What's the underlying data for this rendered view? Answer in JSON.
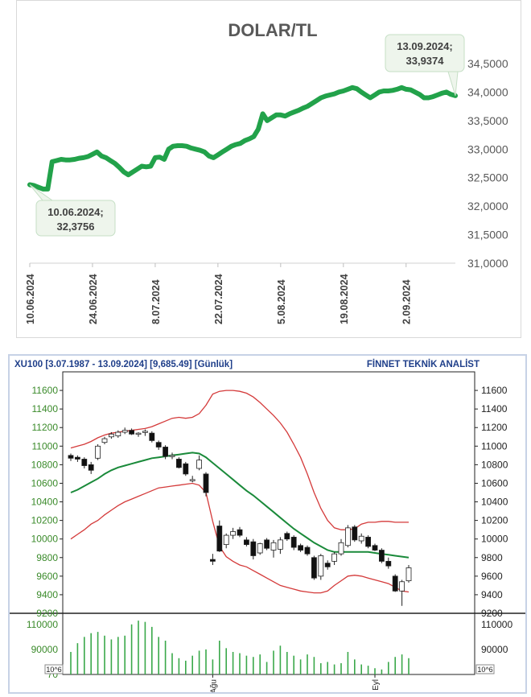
{
  "chart_data": [
    {
      "type": "line",
      "title": "DOLAR/TL",
      "x_tick_labels": [
        "10.06.2024",
        "24.06.2024",
        "8.07.2024",
        "22.07.2024",
        "5.08.2024",
        "19.08.2024",
        "2.09.2024"
      ],
      "y_tick_labels": [
        "31,0000",
        "31,5000",
        "32,0000",
        "32,5000",
        "33,0000",
        "33,5000",
        "34,0000",
        "34,5000"
      ],
      "ylim": [
        31.0,
        34.5
      ],
      "grid": false,
      "series_color": "#22a24a",
      "annotations": [
        {
          "date_line": "10.06.2024;",
          "value_line": "32,3756",
          "x": 0,
          "y": 32.3756
        },
        {
          "date_line": "13.09.2024;",
          "value_line": "33,9374",
          "x": 95,
          "y": 33.9374
        }
      ],
      "points": [
        [
          0,
          32.3756
        ],
        [
          1,
          32.36
        ],
        [
          2,
          32.33
        ],
        [
          3,
          32.3
        ],
        [
          4,
          32.3
        ],
        [
          5,
          32.78
        ],
        [
          6,
          32.8
        ],
        [
          7,
          32.82
        ],
        [
          8,
          32.81
        ],
        [
          9,
          32.81
        ],
        [
          10,
          32.82
        ],
        [
          11,
          32.84
        ],
        [
          12,
          32.85
        ],
        [
          13,
          32.87
        ],
        [
          14,
          32.91
        ],
        [
          15,
          32.95
        ],
        [
          16,
          32.88
        ],
        [
          17,
          32.85
        ],
        [
          18,
          32.8
        ],
        [
          19,
          32.75
        ],
        [
          20,
          32.68
        ],
        [
          21,
          32.6
        ],
        [
          22,
          32.55
        ],
        [
          23,
          32.6
        ],
        [
          24,
          32.65
        ],
        [
          25,
          32.7
        ],
        [
          26,
          32.69
        ],
        [
          27,
          32.7
        ],
        [
          28,
          32.85
        ],
        [
          29,
          32.86
        ],
        [
          30,
          32.82
        ],
        [
          31,
          33.0
        ],
        [
          32,
          33.05
        ],
        [
          33,
          33.06
        ],
        [
          34,
          33.06
        ],
        [
          35,
          33.05
        ],
        [
          36,
          33.02
        ],
        [
          37,
          33.0
        ],
        [
          38,
          32.98
        ],
        [
          39,
          32.95
        ],
        [
          40,
          32.88
        ],
        [
          41,
          32.85
        ],
        [
          42,
          32.9
        ],
        [
          43,
          32.95
        ],
        [
          44,
          33.0
        ],
        [
          45,
          33.05
        ],
        [
          46,
          33.08
        ],
        [
          47,
          33.1
        ],
        [
          48,
          33.15
        ],
        [
          49,
          33.18
        ],
        [
          50,
          33.22
        ],
        [
          51,
          33.35
        ],
        [
          52,
          33.62
        ],
        [
          53,
          33.5
        ],
        [
          54,
          33.55
        ],
        [
          55,
          33.6
        ],
        [
          56,
          33.6
        ],
        [
          57,
          33.58
        ],
        [
          58,
          33.62
        ],
        [
          59,
          33.65
        ],
        [
          60,
          33.68
        ],
        [
          61,
          33.72
        ],
        [
          62,
          33.75
        ],
        [
          63,
          33.8
        ],
        [
          64,
          33.85
        ],
        [
          65,
          33.9
        ],
        [
          66,
          33.93
        ],
        [
          67,
          33.95
        ],
        [
          68,
          33.97
        ],
        [
          69,
          34.0
        ],
        [
          70,
          34.02
        ],
        [
          71,
          34.05
        ],
        [
          72,
          34.08
        ],
        [
          73,
          34.06
        ],
        [
          74,
          34.0
        ],
        [
          75,
          33.95
        ],
        [
          76,
          33.9
        ],
        [
          77,
          33.95
        ],
        [
          78,
          34.0
        ],
        [
          79,
          34.02
        ],
        [
          80,
          34.02
        ],
        [
          81,
          34.03
        ],
        [
          82,
          34.05
        ],
        [
          83,
          34.08
        ],
        [
          84,
          34.05
        ],
        [
          85,
          34.04
        ],
        [
          86,
          34.0
        ],
        [
          87,
          33.96
        ],
        [
          88,
          33.9
        ],
        [
          89,
          33.9
        ],
        [
          90,
          33.92
        ],
        [
          91,
          33.95
        ],
        [
          92,
          33.98
        ],
        [
          93,
          34.0
        ],
        [
          94,
          33.96
        ],
        [
          95,
          33.9374
        ]
      ]
    },
    {
      "type": "candlestick",
      "header_left": "XU100  [3.07.1987 - 13.09.2024]  [9,685.49]  [Günlük]",
      "header_right": "FİNNET TEKNİK ANALİST",
      "y_tick_labels": [
        "9200",
        "9400",
        "9600",
        "9800",
        "10000",
        "10200",
        "10400",
        "10600",
        "10800",
        "11000",
        "11200",
        "11400",
        "11600"
      ],
      "ylim": [
        9200,
        11800
      ],
      "axis_color_left": "#3a8a2a",
      "volume_tick_labels": [
        "70",
        "90000",
        "110000"
      ],
      "volume_unit": "10^6",
      "volume_ylim": [
        70000,
        115000
      ],
      "x_tick_labels": [
        "Ağu",
        "Eyl"
      ],
      "x_tick_index": [
        21,
        45
      ],
      "bollinger_color": "#d43a3a",
      "ma_color": "#1a8a3a",
      "candles": [
        {
          "o": 10900,
          "h": 10920,
          "l": 10840,
          "c": 10870
        },
        {
          "o": 10880,
          "h": 10900,
          "l": 10830,
          "c": 10860
        },
        {
          "o": 10860,
          "h": 10880,
          "l": 10760,
          "c": 10790
        },
        {
          "o": 10800,
          "h": 10830,
          "l": 10700,
          "c": 10740
        },
        {
          "o": 10870,
          "h": 11020,
          "l": 10850,
          "c": 11000
        },
        {
          "o": 11040,
          "h": 11100,
          "l": 11020,
          "c": 11080
        },
        {
          "o": 11100,
          "h": 11150,
          "l": 11080,
          "c": 11130
        },
        {
          "o": 11110,
          "h": 11170,
          "l": 11090,
          "c": 11150
        },
        {
          "o": 11150,
          "h": 11200,
          "l": 11130,
          "c": 11170
        },
        {
          "o": 11170,
          "h": 11190,
          "l": 11120,
          "c": 11130
        },
        {
          "o": 11130,
          "h": 11150,
          "l": 11100,
          "c": 11140
        },
        {
          "o": 11150,
          "h": 11180,
          "l": 11110,
          "c": 11160
        },
        {
          "o": 11140,
          "h": 11160,
          "l": 11040,
          "c": 11060
        },
        {
          "o": 11040,
          "h": 11060,
          "l": 10960,
          "c": 10990
        },
        {
          "o": 10990,
          "h": 11010,
          "l": 10860,
          "c": 10890
        },
        {
          "o": 10890,
          "h": 10930,
          "l": 10860,
          "c": 10900
        },
        {
          "o": 10860,
          "h": 10880,
          "l": 10760,
          "c": 10770
        },
        {
          "o": 10810,
          "h": 10830,
          "l": 10680,
          "c": 10700
        },
        {
          "o": 10640,
          "h": 10680,
          "l": 10610,
          "c": 10640
        },
        {
          "o": 10760,
          "h": 10900,
          "l": 10740,
          "c": 10850
        },
        {
          "o": 10700,
          "h": 10720,
          "l": 10460,
          "c": 10500
        },
        {
          "o": 9780,
          "h": 9840,
          "l": 9720,
          "c": 9760
        },
        {
          "o": 10140,
          "h": 10200,
          "l": 9860,
          "c": 9870
        },
        {
          "o": 9940,
          "h": 10060,
          "l": 9900,
          "c": 10040
        },
        {
          "o": 10040,
          "h": 10120,
          "l": 10000,
          "c": 10080
        },
        {
          "o": 10100,
          "h": 10130,
          "l": 10020,
          "c": 10040
        },
        {
          "o": 9990,
          "h": 10020,
          "l": 9920,
          "c": 9940
        },
        {
          "o": 9970,
          "h": 10000,
          "l": 9780,
          "c": 9820
        },
        {
          "o": 9850,
          "h": 9960,
          "l": 9830,
          "c": 9950
        },
        {
          "o": 9990,
          "h": 10010,
          "l": 9880,
          "c": 9900
        },
        {
          "o": 9880,
          "h": 9990,
          "l": 9800,
          "c": 9960
        },
        {
          "o": 9890,
          "h": 10020,
          "l": 9840,
          "c": 9990
        },
        {
          "o": 10060,
          "h": 10080,
          "l": 9980,
          "c": 10000
        },
        {
          "o": 10020,
          "h": 10040,
          "l": 9880,
          "c": 9910
        },
        {
          "o": 9930,
          "h": 9950,
          "l": 9860,
          "c": 9880
        },
        {
          "o": 9910,
          "h": 9930,
          "l": 9820,
          "c": 9840
        },
        {
          "o": 9800,
          "h": 9820,
          "l": 9560,
          "c": 9580
        },
        {
          "o": 9600,
          "h": 9840,
          "l": 9560,
          "c": 9820
        },
        {
          "o": 9740,
          "h": 9770,
          "l": 9670,
          "c": 9700
        },
        {
          "o": 9760,
          "h": 9860,
          "l": 9720,
          "c": 9840
        },
        {
          "o": 9840,
          "h": 10000,
          "l": 9820,
          "c": 9960
        },
        {
          "o": 9930,
          "h": 10150,
          "l": 9910,
          "c": 10120
        },
        {
          "o": 10130,
          "h": 10150,
          "l": 9970,
          "c": 9990
        },
        {
          "o": 9980,
          "h": 10060,
          "l": 9950,
          "c": 10030
        },
        {
          "o": 10020,
          "h": 10040,
          "l": 9900,
          "c": 9920
        },
        {
          "o": 9930,
          "h": 9950,
          "l": 9870,
          "c": 9880
        },
        {
          "o": 9880,
          "h": 9900,
          "l": 9740,
          "c": 9760
        },
        {
          "o": 9760,
          "h": 9800,
          "l": 9680,
          "c": 9710
        },
        {
          "o": 9600,
          "h": 9620,
          "l": 9430,
          "c": 9440
        },
        {
          "o": 9440,
          "h": 9560,
          "l": 9280,
          "c": 9540
        },
        {
          "o": 9550,
          "h": 9720,
          "l": 9530,
          "c": 9690
        }
      ],
      "upper_band": [
        10980,
        11000,
        11020,
        11050,
        11090,
        11120,
        11140,
        11150,
        11160,
        11170,
        11180,
        11190,
        11210,
        11240,
        11270,
        11300,
        11310,
        11300,
        11310,
        11350,
        11440,
        11560,
        11590,
        11600,
        11600,
        11590,
        11570,
        11530,
        11470,
        11400,
        11330,
        11250,
        11150,
        11020,
        10880,
        10700,
        10500,
        10330,
        10200,
        10120,
        10100,
        10100,
        10110,
        10160,
        10180,
        10180,
        10190,
        10190,
        10180,
        10180,
        10180
      ],
      "middle_band": [
        10500,
        10530,
        10570,
        10610,
        10650,
        10700,
        10740,
        10770,
        10790,
        10810,
        10830,
        10850,
        10870,
        10880,
        10890,
        10900,
        10910,
        10920,
        10930,
        10920,
        10880,
        10820,
        10760,
        10700,
        10640,
        10580,
        10520,
        10470,
        10410,
        10350,
        10290,
        10230,
        10170,
        10110,
        10060,
        10010,
        9960,
        9920,
        9880,
        9860,
        9860,
        9860,
        9860,
        9860,
        9860,
        9850,
        9840,
        9830,
        9820,
        9810,
        9800
      ],
      "lower_band": [
        10000,
        10050,
        10100,
        10160,
        10200,
        10260,
        10310,
        10360,
        10400,
        10430,
        10460,
        10490,
        10520,
        10550,
        10560,
        10570,
        10580,
        10590,
        10600,
        10580,
        10500,
        10190,
        9920,
        9810,
        9760,
        9720,
        9700,
        9660,
        9620,
        9580,
        9540,
        9500,
        9480,
        9460,
        9440,
        9430,
        9420,
        9420,
        9440,
        9500,
        9550,
        9600,
        9610,
        9600,
        9580,
        9560,
        9540,
        9520,
        9480,
        9440,
        9430
      ],
      "volumes": [
        88000,
        95000,
        100000,
        103000,
        104000,
        101000,
        98000,
        100000,
        101000,
        110000,
        113000,
        112000,
        108000,
        100000,
        97000,
        87000,
        83000,
        81000,
        85000,
        89000,
        90000,
        82000,
        97000,
        91000,
        88000,
        87000,
        85000,
        84000,
        86000,
        80000,
        89000,
        93000,
        88000,
        85000,
        82000,
        86000,
        84000,
        79000,
        80000,
        78000,
        79000,
        88000,
        82000,
        78000,
        77000,
        75000,
        74000,
        80000,
        84000,
        86000,
        83000
      ]
    }
  ]
}
